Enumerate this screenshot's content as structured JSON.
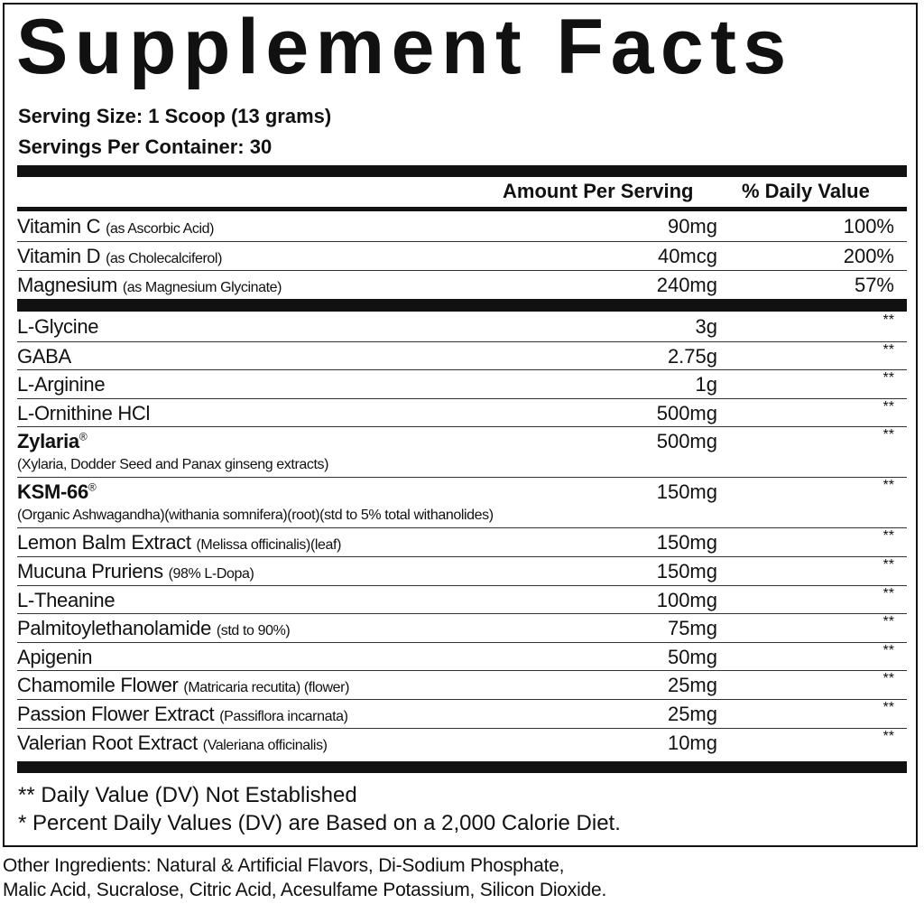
{
  "title": "Supplement Facts",
  "serving_size": "Serving Size: 1 Scoop (13 grams)",
  "servings_per_container": "Servings Per Container: 30",
  "headers": {
    "amount": "Amount Per Serving",
    "dv": "% Daily Value"
  },
  "vitamins": [
    {
      "name": "Vitamin C",
      "detail": "(as Ascorbic Acid)",
      "amount": "90mg",
      "dv": "100%"
    },
    {
      "name": "Vitamin D",
      "detail": "(as Cholecalciferol)",
      "amount": "40mcg",
      "dv": "200%"
    },
    {
      "name": "Magnesium",
      "detail": "(as Magnesium Glycinate)",
      "amount": "240mg",
      "dv": "57%"
    }
  ],
  "ingredients": [
    {
      "name": "L-Glycine",
      "detail": "",
      "amount": "3g",
      "dv": "**"
    },
    {
      "name": "GABA",
      "detail": "",
      "amount": "2.75g",
      "dv": "**"
    },
    {
      "name": "L-Arginine",
      "detail": "",
      "amount": "1g",
      "dv": "**"
    },
    {
      "name": "L-Ornithine HCl",
      "detail": "",
      "amount": "500mg",
      "dv": "**"
    },
    {
      "name": "Zylaria",
      "reg": "®",
      "bold": true,
      "sub": " (Xylaria, Dodder Seed and Panax ginseng extracts)",
      "amount": "500mg",
      "dv": "**"
    },
    {
      "name": "KSM-66",
      "reg": "®",
      "bold": true,
      "sub": "(Organic Ashwagandha)(withania somnifera)(root)(std to 5% total withanolides)",
      "amount": "150mg",
      "dv": "**"
    },
    {
      "name": "Lemon Balm Extract",
      "detail": "(Melissa officinalis)(leaf)",
      "amount": "150mg",
      "dv": "**"
    },
    {
      "name": "Mucuna Pruriens",
      "detail": "(98% L-Dopa)",
      "amount": "150mg",
      "dv": "**"
    },
    {
      "name": "L-Theanine",
      "detail": "",
      "amount": "100mg",
      "dv": "**"
    },
    {
      "name": "Palmitoylethanolamide",
      "detail": "(std to 90%)",
      "amount": "75mg",
      "dv": "**"
    },
    {
      "name": "Apigenin",
      "detail": "",
      "amount": "50mg",
      "dv": "**"
    },
    {
      "name": "Chamomile Flower",
      "detail": "(Matricaria recutita) (flower)",
      "amount": "25mg",
      "dv": "**"
    },
    {
      "name": "Passion Flower Extract",
      "detail": "(Passiflora incarnata)",
      "amount": "25mg",
      "dv": "**"
    },
    {
      "name": "Valerian Root Extract",
      "detail": "(Valeriana officinalis)",
      "amount": "10mg",
      "dv": "**"
    }
  ],
  "footnotes": [
    "** Daily Value (DV) Not Established",
    "* Percent Daily Values (DV) are Based on a 2,000 Calorie Diet."
  ],
  "other_ingredients": [
    "Other Ingredients: Natural & Artificial Flavors, Di-Sodium Phosphate,",
    "Malic Acid, Sucralose, Citric Acid, Acesulfame Potassium, Silicon Dioxide."
  ]
}
